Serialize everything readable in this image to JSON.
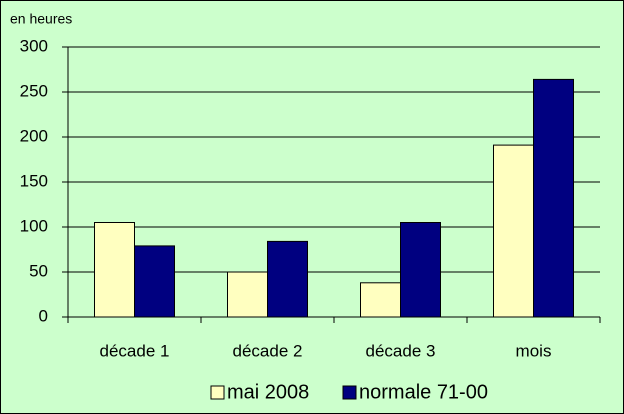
{
  "chart_data": {
    "type": "bar",
    "unit_label": "en heures",
    "categories": [
      "décade 1",
      "décade 2",
      "décade 3",
      "mois"
    ],
    "series": [
      {
        "name": "mai 2008",
        "color": "#ffffc0",
        "values": [
          105,
          50,
          38,
          191
        ]
      },
      {
        "name": "normale 71-00",
        "color": "#000080",
        "values": [
          79,
          84,
          105,
          264
        ]
      }
    ],
    "ylim": [
      0,
      300
    ],
    "yticks": [
      0,
      50,
      100,
      150,
      200,
      250,
      300
    ],
    "grid": true,
    "legend": "bottom"
  }
}
